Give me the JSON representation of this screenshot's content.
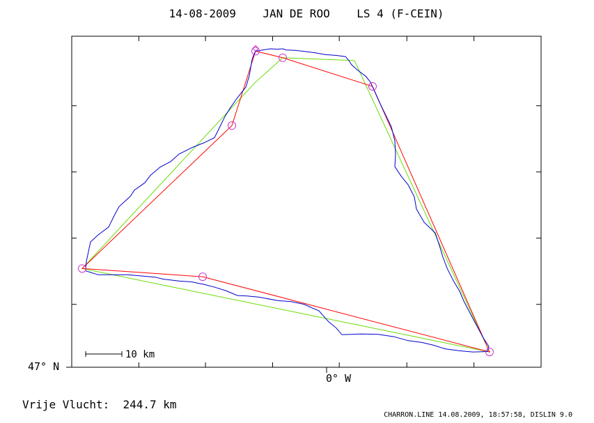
{
  "title": "14-08-2009    JAN DE ROO    LS 4 (F-CEIN)",
  "footer_left": "Vrije Vlucht:  244.7 km",
  "footer_right": "CHARRON.LINE 14.08.2009, 18:57:58, DISLIN 9.0",
  "chart_data": {
    "type": "line",
    "title": "14-08-2009    JAN DE ROO    LS 4 (F-CEIN)",
    "axis_labels": {
      "x": "0° W",
      "y": "47° N"
    },
    "scale_bar": {
      "label": "10 km",
      "km": 10
    },
    "distance_label": "Vrije Vlucht:  244.7 km",
    "units": "km relative to 0° W, 47° N",
    "xlim": [
      -36.6,
      30.8
    ],
    "ylim": [
      0,
      84.5
    ],
    "grid": false,
    "legend": "none",
    "colors": {
      "track": "#0000cc",
      "task": "#ff0000",
      "triangle": "#66dd00",
      "turnpoint": "#cc33cc",
      "frame": "#000000"
    },
    "series": [
      {
        "role": "track",
        "points": [
          [
            -10.2,
            80.7
          ],
          [
            -9.5,
            80.9
          ],
          [
            -8.8,
            81.1
          ],
          [
            -8.0,
            81.3
          ],
          [
            -7.1,
            81.2
          ],
          [
            -6.3,
            81.3
          ],
          [
            -5.8,
            81.0
          ],
          [
            -4.5,
            80.9
          ],
          [
            -3.1,
            80.6
          ],
          [
            -1.7,
            80.3
          ],
          [
            -0.2,
            79.8
          ],
          [
            1.4,
            79.6
          ],
          [
            2.7,
            79.3
          ],
          [
            3.2,
            78.3
          ],
          [
            3.6,
            77.2
          ],
          [
            4.4,
            75.9
          ],
          [
            5.6,
            74.3
          ],
          [
            6.3,
            72.8
          ],
          [
            7.0,
            70.0
          ],
          [
            7.6,
            67.6
          ],
          [
            8.4,
            64.7
          ],
          [
            9.3,
            61.4
          ],
          [
            9.8,
            57.8
          ],
          [
            9.9,
            54.4
          ],
          [
            9.8,
            51.2
          ],
          [
            10.7,
            48.8
          ],
          [
            11.7,
            46.6
          ],
          [
            12.6,
            43.5
          ],
          [
            12.9,
            40.4
          ],
          [
            14.0,
            37.0
          ],
          [
            15.6,
            34.3
          ],
          [
            16.2,
            31.1
          ],
          [
            16.7,
            28.1
          ],
          [
            17.3,
            25.3
          ],
          [
            18.2,
            22.1
          ],
          [
            19.1,
            19.4
          ],
          [
            19.7,
            16.9
          ],
          [
            20.6,
            13.8
          ],
          [
            21.6,
            10.5
          ],
          [
            22.5,
            7.5
          ],
          [
            23.3,
            5.3
          ],
          [
            23.1,
            4.0
          ],
          [
            21.0,
            3.9
          ],
          [
            19.1,
            4.2
          ],
          [
            17.0,
            4.7
          ],
          [
            15.4,
            5.6
          ],
          [
            13.8,
            6.3
          ],
          [
            11.7,
            6.8
          ],
          [
            9.7,
            7.8
          ],
          [
            7.4,
            8.4
          ],
          [
            5.0,
            8.5
          ],
          [
            2.2,
            8.3
          ],
          [
            1.4,
            10.0
          ],
          [
            0.3,
            11.6
          ],
          [
            -1.1,
            14.4
          ],
          [
            -3.3,
            16.1
          ],
          [
            -5.2,
            16.8
          ],
          [
            -7.0,
            17.0
          ],
          [
            -9.7,
            17.9
          ],
          [
            -11.4,
            18.2
          ],
          [
            -12.8,
            18.3
          ],
          [
            -14.4,
            19.5
          ],
          [
            -16.0,
            20.4
          ],
          [
            -17.5,
            21.1
          ],
          [
            -19.4,
            21.8
          ],
          [
            -21.2,
            22.0
          ],
          [
            -23.5,
            22.5
          ],
          [
            -24.6,
            23.0
          ],
          [
            -26.6,
            23.3
          ],
          [
            -28.6,
            23.6
          ],
          [
            -30.7,
            23.6
          ],
          [
            -32.8,
            23.6
          ],
          [
            -34.6,
            24.6
          ],
          [
            -34.5,
            27.0
          ],
          [
            -34.2,
            29.5
          ],
          [
            -33.9,
            32.0
          ],
          [
            -32.8,
            33.8
          ],
          [
            -31.3,
            35.8
          ],
          [
            -30.5,
            38.7
          ],
          [
            -29.8,
            41.0
          ],
          [
            -28.2,
            43.6
          ],
          [
            -27.6,
            45.2
          ],
          [
            -26.1,
            47.1
          ],
          [
            -25.3,
            49.0
          ],
          [
            -23.9,
            51.1
          ],
          [
            -22.4,
            52.5
          ],
          [
            -21.2,
            54.4
          ],
          [
            -19.3,
            56.1
          ],
          [
            -17.6,
            57.3
          ],
          [
            -16.1,
            58.6
          ],
          [
            -15.4,
            61.1
          ],
          [
            -14.6,
            64.0
          ],
          [
            -13.8,
            66.3
          ],
          [
            -12.9,
            68.6
          ],
          [
            -11.6,
            71.5
          ],
          [
            -11.1,
            74.4
          ],
          [
            -10.9,
            76.5
          ],
          [
            -10.7,
            78.6
          ],
          [
            -10.5,
            79.6
          ],
          [
            -10.2,
            80.7
          ]
        ]
      },
      {
        "role": "task",
        "points": [
          [
            -10.2,
            80.7
          ],
          [
            -6.3,
            79.0
          ],
          [
            6.6,
            71.7
          ],
          [
            23.4,
            3.9
          ],
          [
            -17.8,
            23.1
          ],
          [
            -35.1,
            25.2
          ],
          [
            -13.6,
            61.7
          ],
          [
            -10.2,
            80.7
          ]
        ]
      },
      {
        "role": "triangle",
        "points": [
          [
            -6.3,
            79.0
          ],
          [
            4.0,
            78.3
          ],
          [
            23.4,
            3.9
          ],
          [
            -35.1,
            25.2
          ],
          [
            -10.2,
            72.8
          ],
          [
            -6.3,
            79.0
          ]
        ]
      }
    ],
    "turnpoints": [
      [
        -10.2,
        80.7
      ],
      [
        -6.3,
        79.0
      ],
      [
        6.6,
        71.7
      ],
      [
        23.4,
        3.9
      ],
      [
        -17.8,
        23.1
      ],
      [
        -35.1,
        25.2
      ],
      [
        -13.6,
        61.7
      ]
    ],
    "start_marker": [
      -10.2,
      80.7
    ]
  }
}
